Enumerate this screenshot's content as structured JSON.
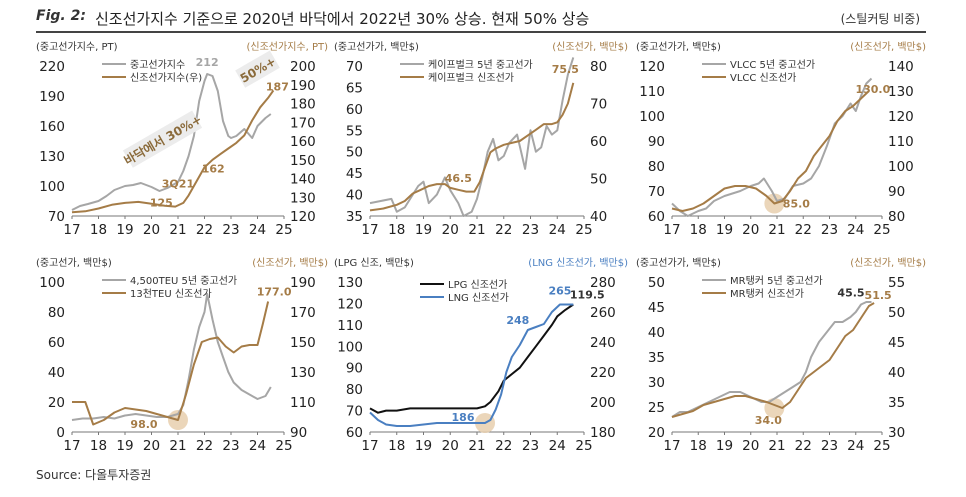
{
  "header": {
    "fig_label": "Fig. 2:",
    "title": "신조선가지수 기준으로 2020년 바닥에서 2022년 30% 상승. 현재 50% 상승",
    "note": "(스틸커팅 비중)"
  },
  "source": "Source: 다올투자증권",
  "colors": {
    "left_series": "#a6a6a6",
    "right_series": "#a57c47",
    "lng": "#4a7fc1",
    "lpg": "#111111",
    "highlight": "#e7cfae"
  },
  "chart_data": [
    {
      "type": "line",
      "left_unit": "(중고선가지수, PT)",
      "right_unit": "(신조선가지수, PT)",
      "xticks": [
        "17",
        "18",
        "19",
        "20",
        "21",
        "22",
        "23",
        "24",
        "25"
      ],
      "xlim": [
        17,
        25
      ],
      "ylim_left": [
        70,
        220
      ],
      "yticks_left": [
        "70",
        "100",
        "130",
        "160",
        "190",
        "220"
      ],
      "ylim_right": [
        120,
        200
      ],
      "yticks_right": [
        "120",
        "130",
        "140",
        "150",
        "160",
        "170",
        "180",
        "190",
        "200"
      ],
      "series": [
        {
          "name": "중고선가지수",
          "axis": "left",
          "color": "#a6a6a6",
          "x": [
            17.0,
            17.3,
            17.6,
            18.0,
            18.3,
            18.6,
            19.0,
            19.3,
            19.6,
            20.0,
            20.3,
            20.6,
            21.0,
            21.2,
            21.4,
            21.6,
            21.8,
            22.0,
            22.1,
            22.3,
            22.5,
            22.7,
            22.9,
            23.0,
            23.2,
            23.5,
            23.8,
            24.0,
            24.3,
            24.5
          ],
          "y": [
            76,
            80,
            82,
            85,
            90,
            96,
            100,
            101,
            103,
            99,
            95,
            98,
            104,
            115,
            130,
            150,
            185,
            205,
            212,
            210,
            195,
            165,
            150,
            148,
            150,
            157,
            148,
            160,
            168,
            172
          ]
        },
        {
          "name": "신조선가지수(우)",
          "axis": "right",
          "color": "#a57c47",
          "x": [
            17.0,
            17.5,
            18.0,
            18.5,
            19.0,
            19.5,
            20.0,
            20.5,
            20.9,
            21.2,
            21.4,
            21.6,
            21.8,
            22.0,
            22.3,
            22.6,
            22.9,
            23.2,
            23.5,
            23.8,
            24.1,
            24.4,
            24.6
          ],
          "y": [
            122,
            122.5,
            124,
            126,
            127,
            127.5,
            126.5,
            125.5,
            125,
            127,
            131,
            136,
            141,
            146,
            150,
            153,
            156,
            159,
            163,
            171,
            178,
            183,
            187
          ]
        }
      ],
      "annotations": [
        "212",
        "162",
        "125",
        "3Q21",
        "187"
      ],
      "callouts": [
        "바닥에서 30%+",
        "50%+"
      ]
    },
    {
      "type": "line",
      "left_unit": "(중고선가가, 백만$)",
      "right_unit": "(신조선가, 백만$)",
      "xticks": [
        "17",
        "18",
        "19",
        "20",
        "21",
        "22",
        "23",
        "24",
        "25"
      ],
      "xlim": [
        17,
        25
      ],
      "ylim_left": [
        35,
        70
      ],
      "yticks_left": [
        "35",
        "40",
        "45",
        "50",
        "55",
        "60",
        "65",
        "70"
      ],
      "ylim_right": [
        40,
        80
      ],
      "yticks_right": [
        "40",
        "50",
        "60",
        "70",
        "80"
      ],
      "series": [
        {
          "name": "케이프벌크 5년 중고선가",
          "axis": "left",
          "color": "#a6a6a6",
          "x": [
            17.0,
            17.4,
            17.8,
            18.0,
            18.3,
            18.6,
            18.8,
            19.0,
            19.2,
            19.5,
            19.8,
            20.0,
            20.3,
            20.5,
            20.8,
            21.0,
            21.2,
            21.4,
            21.6,
            21.8,
            22.0,
            22.2,
            22.5,
            22.8,
            23.0,
            23.2,
            23.4,
            23.6,
            23.8,
            24.0,
            24.2,
            24.4,
            24.6
          ],
          "y": [
            38,
            38.5,
            39,
            36,
            37,
            40,
            42,
            43,
            38,
            40,
            44,
            41,
            38,
            35,
            36,
            39,
            44,
            50,
            53,
            48,
            49,
            52,
            54,
            46,
            55,
            50,
            51,
            56,
            54,
            55,
            62,
            68,
            72
          ]
        },
        {
          "name": "케이프벌크 신조선가",
          "axis": "right",
          "color": "#a57c47",
          "x": [
            17.0,
            17.5,
            18.0,
            18.3,
            18.6,
            18.9,
            19.2,
            19.5,
            19.8,
            20.0,
            20.3,
            20.6,
            20.9,
            21.1,
            21.3,
            21.5,
            21.7,
            22.0,
            22.3,
            22.6,
            22.9,
            23.2,
            23.5,
            23.8,
            24.0,
            24.2,
            24.4,
            24.6
          ],
          "y": [
            41.5,
            42,
            43,
            44,
            46,
            47,
            48,
            48.5,
            48.5,
            47.5,
            47,
            46.5,
            46.5,
            49,
            53,
            57,
            58,
            59,
            59.5,
            60,
            61.5,
            63,
            64.5,
            64.5,
            65,
            67,
            70,
            75.5
          ]
        }
      ],
      "annotations": [
        "46.5",
        "75.5"
      ]
    },
    {
      "type": "line",
      "left_unit": "(중고선가가, 백만$)",
      "right_unit": "(신조선가, 백만$)",
      "xticks": [
        "17",
        "18",
        "19",
        "20",
        "21",
        "22",
        "23",
        "24",
        "25"
      ],
      "xlim": [
        17,
        25
      ],
      "ylim_left": [
        60,
        120
      ],
      "yticks_left": [
        "60",
        "70",
        "80",
        "90",
        "100",
        "110",
        "120"
      ],
      "ylim_right": [
        80,
        140
      ],
      "yticks_right": [
        "80",
        "90",
        "100",
        "110",
        "120",
        "130",
        "140"
      ],
      "series": [
        {
          "name": "VLCC 5년 중고선가",
          "axis": "left",
          "color": "#a6a6a6",
          "x": [
            17.0,
            17.3,
            17.6,
            18.0,
            18.3,
            18.6,
            19.0,
            19.3,
            19.6,
            20.0,
            20.3,
            20.5,
            20.8,
            21.0,
            21.3,
            21.6,
            22.0,
            22.3,
            22.6,
            22.9,
            23.2,
            23.5,
            23.8,
            24.0,
            24.2,
            24.4,
            24.6
          ],
          "y": [
            65,
            62,
            60,
            62,
            63,
            66,
            68,
            69,
            70,
            72,
            73,
            75,
            70,
            66,
            67,
            72,
            73,
            75,
            80,
            88,
            97,
            100,
            105,
            102,
            108,
            113,
            115
          ]
        },
        {
          "name": "VLCC 신조선가",
          "axis": "right",
          "color": "#a57c47",
          "x": [
            17.0,
            17.4,
            17.8,
            18.2,
            18.6,
            19.0,
            19.4,
            19.8,
            20.2,
            20.6,
            20.9,
            21.2,
            21.5,
            21.8,
            22.1,
            22.4,
            22.7,
            23.0,
            23.3,
            23.6,
            23.9,
            24.2,
            24.5
          ],
          "y": [
            83,
            82,
            83,
            85,
            88,
            91,
            92,
            92,
            91,
            88,
            85,
            86,
            90,
            95,
            98,
            104,
            108,
            112,
            118,
            122,
            124,
            127,
            130
          ]
        }
      ],
      "annotations": [
        "85.0",
        "130.0"
      ]
    },
    {
      "type": "line",
      "left_unit": "(중고선가, 백만$)",
      "right_unit": "(신조선가, 백만$)",
      "xticks": [
        "17",
        "18",
        "19",
        "20",
        "21",
        "22",
        "23",
        "24",
        "25"
      ],
      "xlim": [
        17,
        25
      ],
      "ylim_left": [
        0,
        100
      ],
      "yticks_left": [
        "0",
        "20",
        "40",
        "60",
        "80",
        "100"
      ],
      "ylim_right": [
        90,
        190
      ],
      "yticks_right": [
        "90",
        "110",
        "130",
        "150",
        "170",
        "190"
      ],
      "series": [
        {
          "name": "4,500TEU 5년 중고선가",
          "axis": "left",
          "color": "#a6a6a6",
          "x": [
            17.0,
            17.4,
            17.8,
            18.2,
            18.6,
            19.0,
            19.4,
            19.8,
            20.2,
            20.6,
            21.0,
            21.2,
            21.4,
            21.6,
            21.8,
            22.0,
            22.1,
            22.3,
            22.5,
            22.7,
            22.9,
            23.1,
            23.4,
            23.7,
            24.0,
            24.3,
            24.5
          ],
          "y": [
            8,
            9,
            9,
            10,
            9,
            11,
            12,
            11,
            10,
            10,
            12,
            18,
            35,
            55,
            70,
            80,
            92,
            75,
            60,
            50,
            40,
            33,
            28,
            25,
            22,
            24,
            30
          ]
        },
        {
          "name": "13천TEU 신조선가",
          "axis": "right",
          "color": "#a57c47",
          "x": [
            17.0,
            17.5,
            17.8,
            18.2,
            18.6,
            19.0,
            19.4,
            19.8,
            20.2,
            20.6,
            21.0,
            21.3,
            21.6,
            21.9,
            22.2,
            22.5,
            22.8,
            23.1,
            23.4,
            23.7,
            24.0,
            24.2,
            24.4
          ],
          "y": [
            110,
            110,
            95,
            98,
            103,
            106,
            105,
            104,
            102,
            100,
            98,
            115,
            135,
            150,
            152,
            153,
            147,
            143,
            147,
            148,
            148,
            162,
            177
          ]
        }
      ],
      "annotations": [
        "98.0",
        "177.0"
      ]
    },
    {
      "type": "line",
      "left_unit": "(LPG 신조, 백만$)",
      "right_unit": "(LNG 신조선가, 백만$)",
      "xticks": [
        "17",
        "18",
        "19",
        "20",
        "21",
        "22",
        "23",
        "24",
        "25"
      ],
      "xlim": [
        17,
        25
      ],
      "ylim_left": [
        60,
        130
      ],
      "yticks_left": [
        "60",
        "70",
        "80",
        "90",
        "100",
        "110",
        "120",
        "130"
      ],
      "ylim_right": [
        180,
        280
      ],
      "yticks_right": [
        "180",
        "200",
        "220",
        "240",
        "260",
        "280"
      ],
      "series": [
        {
          "name": "LPG 신조선가",
          "axis": "left",
          "color": "#111111",
          "x": [
            17.0,
            17.3,
            17.6,
            18.0,
            18.5,
            19.0,
            19.5,
            20.0,
            20.5,
            21.0,
            21.3,
            21.5,
            21.8,
            22.0,
            22.3,
            22.6,
            22.9,
            23.2,
            23.5,
            23.8,
            24.0,
            24.3,
            24.6
          ],
          "y": [
            71,
            69,
            70,
            70,
            71,
            71,
            71,
            71,
            71,
            71,
            72,
            74,
            79,
            84,
            87,
            90,
            95,
            100,
            105,
            110,
            114,
            117,
            119.5
          ]
        },
        {
          "name": "LNG 신조선가",
          "axis": "right",
          "color": "#4a7fc1",
          "x": [
            17.0,
            17.3,
            17.6,
            18.0,
            18.5,
            19.0,
            19.5,
            20.0,
            20.5,
            21.0,
            21.3,
            21.5,
            21.7,
            21.9,
            22.1,
            22.3,
            22.6,
            22.9,
            23.2,
            23.5,
            23.8,
            24.1,
            24.4,
            24.6
          ],
          "y": [
            193,
            188,
            185,
            184,
            184,
            185,
            186,
            186,
            186,
            186,
            186,
            188,
            195,
            205,
            220,
            230,
            238,
            248,
            250,
            252,
            260,
            265,
            265,
            265
          ]
        }
      ],
      "annotations": [
        "186",
        "248",
        "265",
        "119.5"
      ]
    },
    {
      "type": "line",
      "left_unit": "(중고선가가, 백만$)",
      "right_unit": "(신조선가, 백만$)",
      "xticks": [
        "17",
        "18",
        "19",
        "20",
        "21",
        "22",
        "23",
        "24",
        "25"
      ],
      "xlim": [
        17,
        25
      ],
      "ylim_left": [
        20,
        50
      ],
      "yticks_left": [
        "20",
        "25",
        "30",
        "35",
        "40",
        "45",
        "50"
      ],
      "ylim_right": [
        30,
        55
      ],
      "yticks_right": [
        "30",
        "35",
        "40",
        "45",
        "50",
        "55"
      ],
      "series": [
        {
          "name": "MR탱커 5년 중고선가",
          "axis": "left",
          "color": "#a6a6a6",
          "x": [
            17.0,
            17.3,
            17.6,
            18.0,
            18.4,
            18.8,
            19.2,
            19.6,
            20.0,
            20.4,
            20.7,
            21.0,
            21.3,
            21.6,
            21.9,
            22.1,
            22.3,
            22.6,
            22.9,
            23.2,
            23.5,
            23.8,
            24.0,
            24.2,
            24.4,
            24.6
          ],
          "y": [
            23,
            24,
            24,
            25,
            26,
            27,
            28,
            28,
            27,
            26,
            26,
            27,
            28,
            29,
            30,
            32,
            35,
            38,
            40,
            42,
            42,
            43,
            44,
            45.5,
            46,
            46
          ]
        },
        {
          "name": "MR탱커 신조선가",
          "axis": "right",
          "color": "#a57c47",
          "x": [
            17.0,
            17.4,
            17.8,
            18.2,
            18.6,
            19.0,
            19.4,
            19.8,
            20.2,
            20.6,
            20.9,
            21.2,
            21.5,
            21.8,
            22.1,
            22.4,
            22.7,
            23.0,
            23.3,
            23.6,
            23.9,
            24.2,
            24.5,
            24.7
          ],
          "y": [
            32.5,
            33,
            33.5,
            34.5,
            35,
            35.5,
            36,
            36,
            35.5,
            35,
            34.5,
            34,
            35,
            37,
            39,
            40,
            41,
            42,
            44,
            46,
            47,
            49,
            51,
            51.5
          ]
        }
      ],
      "annotations": [
        "34.0",
        "45.5",
        "51.5"
      ]
    }
  ]
}
